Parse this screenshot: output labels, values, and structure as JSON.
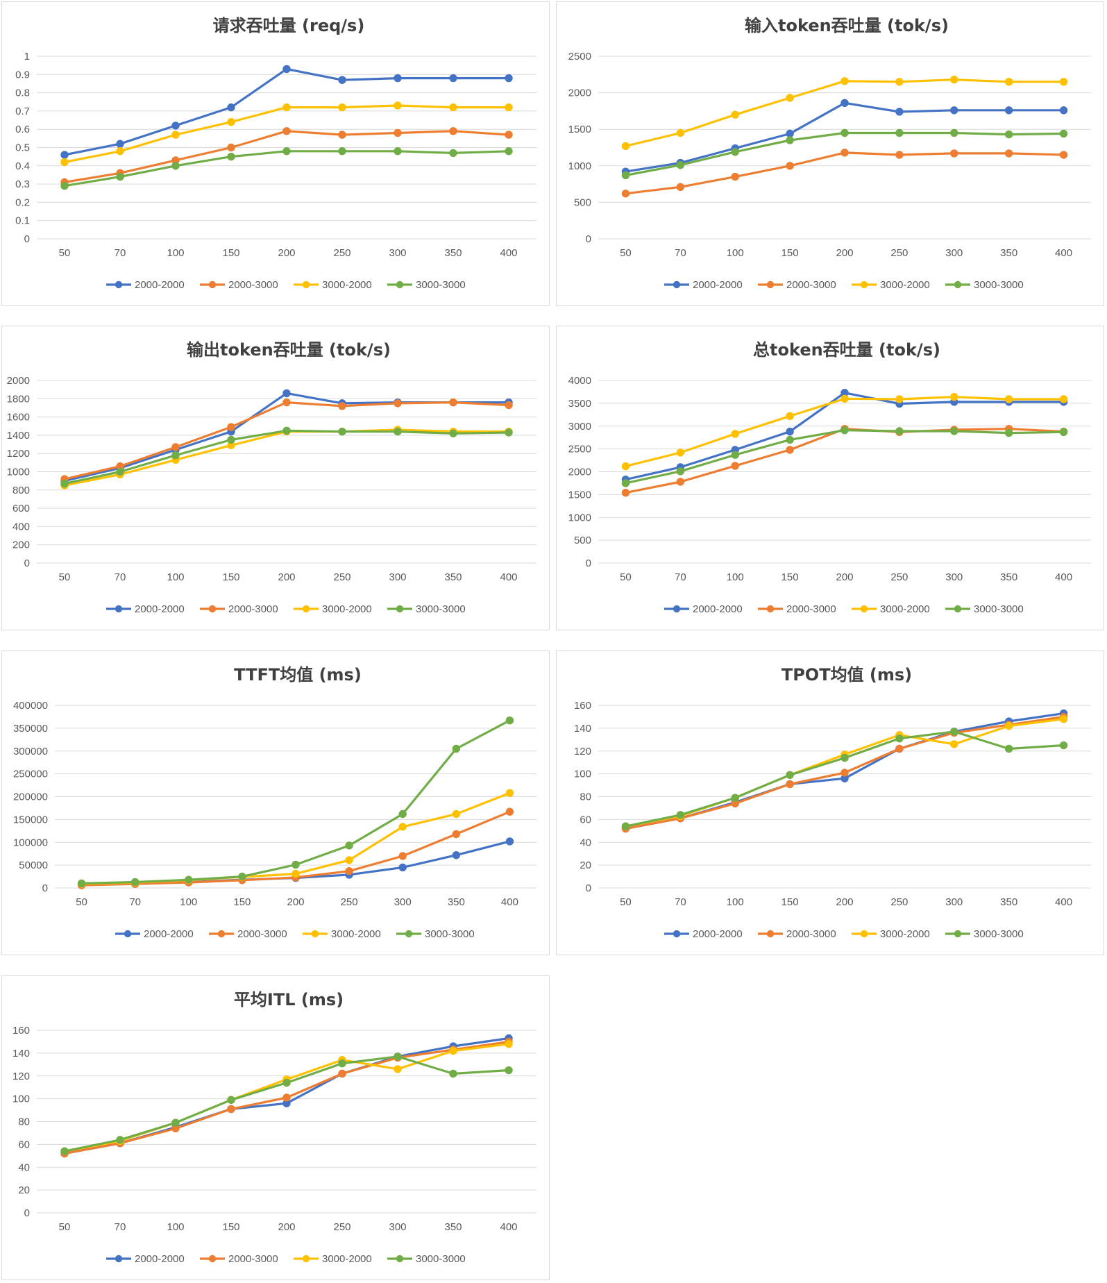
{
  "colors": {
    "2000-2000": "#4472C4",
    "2000-3000": "#ED7D31",
    "3000-2000": "#FFC000",
    "3000-3000": "#70AD47",
    "grid": "#d9d9d9",
    "axis_text": "#595959",
    "title_text": "#404040"
  },
  "chart_data": [
    {
      "type": "line",
      "title": "请求吞吐量 (req/s)",
      "categories": [
        "50",
        "70",
        "100",
        "150",
        "200",
        "250",
        "300",
        "350",
        "400"
      ],
      "ylim": [
        0,
        1
      ],
      "yticks": [
        "0",
        "0.1",
        "0.2",
        "0.3",
        "0.4",
        "0.5",
        "0.6",
        "0.7",
        "0.8",
        "0.9",
        "1"
      ],
      "grid": true,
      "legend": "bottom",
      "series": [
        {
          "name": "2000-2000",
          "values": [
            0.46,
            0.52,
            0.62,
            0.72,
            0.93,
            0.87,
            0.88,
            0.88,
            0.88
          ]
        },
        {
          "name": "2000-3000",
          "values": [
            0.31,
            0.36,
            0.43,
            0.5,
            0.59,
            0.57,
            0.58,
            0.59,
            0.57
          ]
        },
        {
          "name": "3000-2000",
          "values": [
            0.42,
            0.48,
            0.57,
            0.64,
            0.72,
            0.72,
            0.73,
            0.72,
            0.72
          ]
        },
        {
          "name": "3000-3000",
          "values": [
            0.29,
            0.34,
            0.4,
            0.45,
            0.48,
            0.48,
            0.48,
            0.47,
            0.48
          ]
        }
      ]
    },
    {
      "type": "line",
      "title": "输入token吞吐量 (tok/s)",
      "categories": [
        "50",
        "70",
        "100",
        "150",
        "200",
        "250",
        "300",
        "350",
        "400"
      ],
      "ylim": [
        0,
        2500
      ],
      "yticks": [
        "0",
        "500",
        "1000",
        "1500",
        "2000",
        "2500"
      ],
      "grid": true,
      "legend": "bottom",
      "series": [
        {
          "name": "2000-2000",
          "values": [
            920,
            1040,
            1240,
            1440,
            1860,
            1740,
            1760,
            1760,
            1760
          ]
        },
        {
          "name": "2000-3000",
          "values": [
            620,
            710,
            850,
            1000,
            1180,
            1150,
            1170,
            1170,
            1150
          ]
        },
        {
          "name": "3000-2000",
          "values": [
            1270,
            1450,
            1700,
            1930,
            2160,
            2150,
            2180,
            2150,
            2150
          ]
        },
        {
          "name": "3000-3000",
          "values": [
            870,
            1010,
            1190,
            1350,
            1450,
            1450,
            1450,
            1430,
            1440
          ]
        }
      ]
    },
    {
      "type": "line",
      "title": "输出token吞吐量 (tok/s)",
      "categories": [
        "50",
        "70",
        "100",
        "150",
        "200",
        "250",
        "300",
        "350",
        "400"
      ],
      "ylim": [
        0,
        2000
      ],
      "yticks": [
        "0",
        "200",
        "400",
        "600",
        "800",
        "1000",
        "1200",
        "1400",
        "1600",
        "1800",
        "2000"
      ],
      "grid": true,
      "legend": "bottom",
      "series": [
        {
          "name": "2000-2000",
          "values": [
            900,
            1040,
            1240,
            1440,
            1860,
            1750,
            1760,
            1760,
            1760
          ]
        },
        {
          "name": "2000-3000",
          "values": [
            920,
            1060,
            1270,
            1490,
            1760,
            1720,
            1750,
            1760,
            1730
          ]
        },
        {
          "name": "3000-2000",
          "values": [
            850,
            970,
            1130,
            1290,
            1440,
            1440,
            1460,
            1440,
            1440
          ]
        },
        {
          "name": "3000-3000",
          "values": [
            870,
            1000,
            1180,
            1350,
            1450,
            1440,
            1440,
            1420,
            1430
          ]
        }
      ]
    },
    {
      "type": "line",
      "title": "总token吞吐量 (tok/s)",
      "categories": [
        "50",
        "70",
        "100",
        "150",
        "200",
        "250",
        "300",
        "350",
        "400"
      ],
      "ylim": [
        0,
        4000
      ],
      "yticks": [
        "0",
        "500",
        "1000",
        "1500",
        "2000",
        "2500",
        "3000",
        "3500",
        "4000"
      ],
      "grid": true,
      "legend": "bottom",
      "series": [
        {
          "name": "2000-2000",
          "values": [
            1830,
            2100,
            2480,
            2880,
            3730,
            3490,
            3530,
            3530,
            3530
          ]
        },
        {
          "name": "2000-3000",
          "values": [
            1540,
            1780,
            2130,
            2480,
            2940,
            2870,
            2920,
            2940,
            2880
          ]
        },
        {
          "name": "3000-2000",
          "values": [
            2120,
            2420,
            2830,
            3220,
            3600,
            3590,
            3640,
            3590,
            3590
          ]
        },
        {
          "name": "3000-3000",
          "values": [
            1750,
            2010,
            2370,
            2700,
            2910,
            2890,
            2890,
            2850,
            2870
          ]
        }
      ]
    },
    {
      "type": "line",
      "title": "TTFT均值 (ms)",
      "categories": [
        "50",
        "70",
        "100",
        "150",
        "200",
        "250",
        "300",
        "350",
        "400"
      ],
      "ylim": [
        0,
        400000
      ],
      "yticks": [
        "0",
        "50000",
        "100000",
        "150000",
        "200000",
        "250000",
        "300000",
        "350000",
        "400000"
      ],
      "grid": true,
      "legend": "bottom",
      "series": [
        {
          "name": "2000-2000",
          "values": [
            7000,
            9000,
            13000,
            18000,
            22000,
            29000,
            45000,
            72000,
            102000
          ]
        },
        {
          "name": "2000-3000",
          "values": [
            6000,
            9000,
            12000,
            17000,
            23000,
            37000,
            70000,
            118000,
            167000
          ]
        },
        {
          "name": "3000-2000",
          "values": [
            9000,
            12000,
            17000,
            24000,
            31000,
            61000,
            134000,
            162000,
            208000
          ]
        },
        {
          "name": "3000-3000",
          "values": [
            10000,
            13000,
            18000,
            25000,
            51000,
            93000,
            162000,
            305000,
            367000
          ]
        }
      ]
    },
    {
      "type": "line",
      "title": "TPOT均值 (ms)",
      "categories": [
        "50",
        "70",
        "100",
        "150",
        "200",
        "250",
        "300",
        "350",
        "400"
      ],
      "ylim": [
        0,
        160
      ],
      "yticks": [
        "0",
        "20",
        "40",
        "60",
        "80",
        "100",
        "120",
        "140",
        "160"
      ],
      "grid": true,
      "legend": "bottom",
      "series": [
        {
          "name": "2000-2000",
          "values": [
            52,
            61,
            75,
            91,
            96,
            122,
            137,
            146,
            153
          ]
        },
        {
          "name": "2000-3000",
          "values": [
            52,
            61,
            74,
            91,
            101,
            122,
            136,
            143,
            150
          ]
        },
        {
          "name": "3000-2000",
          "values": [
            54,
            63,
            79,
            99,
            117,
            134,
            126,
            142,
            148
          ]
        },
        {
          "name": "3000-3000",
          "values": [
            54,
            64,
            79,
            99,
            114,
            131,
            137,
            122,
            125
          ]
        }
      ]
    },
    {
      "type": "line",
      "title": "平均ITL (ms)",
      "categories": [
        "50",
        "70",
        "100",
        "150",
        "200",
        "250",
        "300",
        "350",
        "400"
      ],
      "ylim": [
        0,
        160
      ],
      "yticks": [
        "0",
        "20",
        "40",
        "60",
        "80",
        "100",
        "120",
        "140",
        "160"
      ],
      "grid": true,
      "legend": "bottom",
      "series": [
        {
          "name": "2000-2000",
          "values": [
            52,
            61,
            75,
            91,
            96,
            122,
            137,
            146,
            153
          ]
        },
        {
          "name": "2000-3000",
          "values": [
            52,
            61,
            74,
            91,
            101,
            122,
            136,
            143,
            150
          ]
        },
        {
          "name": "3000-2000",
          "values": [
            54,
            63,
            79,
            99,
            117,
            134,
            126,
            142,
            148
          ]
        },
        {
          "name": "3000-3000",
          "values": [
            54,
            64,
            79,
            99,
            114,
            131,
            137,
            122,
            125
          ]
        }
      ]
    }
  ]
}
